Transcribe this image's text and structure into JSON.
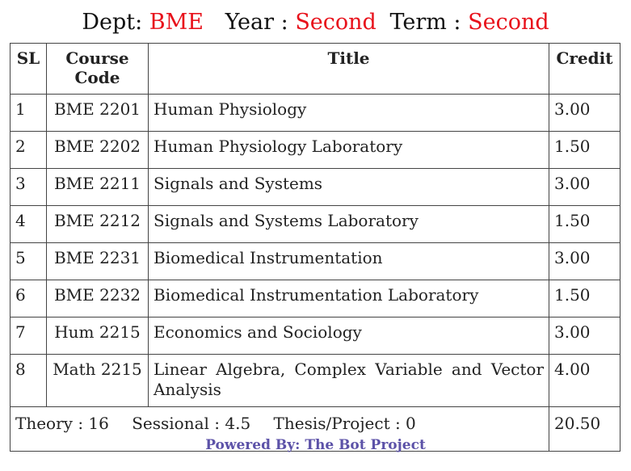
{
  "header": {
    "dept_label": "Dept:",
    "dept_value": "BME",
    "year_label": "Year :",
    "year_value": "Second",
    "term_label": "Term :",
    "term_value": "Second"
  },
  "table": {
    "columns": [
      "SL",
      "Course Code",
      "Title",
      "Credit"
    ],
    "rows": [
      {
        "sl": "1",
        "code": "BME 2201",
        "title": "Human Physiology",
        "credit": "3.00"
      },
      {
        "sl": "2",
        "code": "BME 2202",
        "title": "Human Physiology Laboratory",
        "credit": "1.50"
      },
      {
        "sl": "3",
        "code": "BME 2211",
        "title": "Signals and Systems",
        "credit": "3.00"
      },
      {
        "sl": "4",
        "code": "BME 2212",
        "title": "Signals and Systems Laboratory",
        "credit": "1.50"
      },
      {
        "sl": "5",
        "code": "BME 2231",
        "title": "Biomedical Instrumentation",
        "credit": "3.00"
      },
      {
        "sl": "6",
        "code": "BME 2232",
        "title": "Biomedical Instrumentation Laboratory",
        "credit": "1.50"
      },
      {
        "sl": "7",
        "code": "Hum 2215",
        "title": "Economics and Sociology",
        "credit": "3.00"
      },
      {
        "sl": "8",
        "code": "Math 2215",
        "title": "Linear Algebra, Complex Variable and Vector Analysis",
        "credit": "4.00"
      }
    ],
    "summary": {
      "theory": "Theory : 16",
      "sessional": "Sessional : 4.5",
      "thesis": "Thesis/Project : 0",
      "total_credit": "20.50"
    }
  },
  "footer": {
    "text": "Powered By: The Bot Project"
  },
  "colors": {
    "accent_red": "#e8111b",
    "footer_purple": "#5c52a8"
  }
}
